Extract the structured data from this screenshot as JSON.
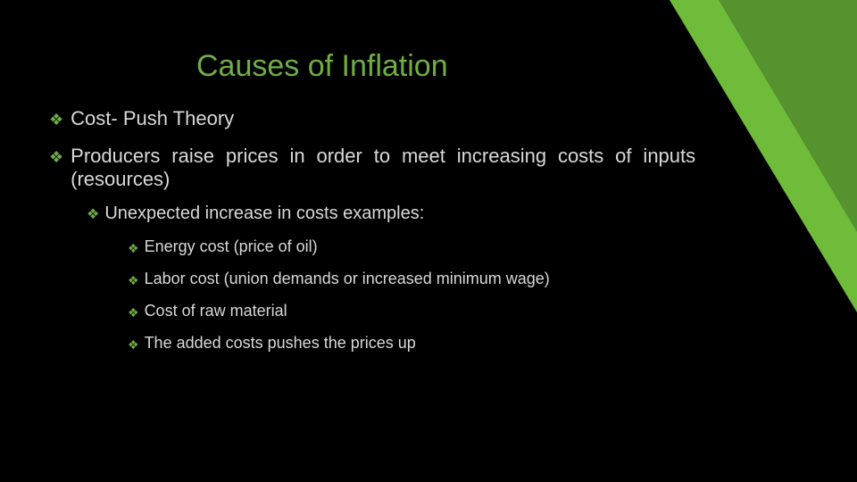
{
  "colors": {
    "background": "#000000",
    "accent": "#70ad47",
    "corner": "#6fbb3a",
    "text": "#d9d9d9"
  },
  "typography": {
    "title_fontsize": 34,
    "lvl1_fontsize": 22,
    "lvl2_fontsize": 20,
    "lvl3_fontsize": 18,
    "font_family": "Verdana"
  },
  "title": "Causes of Inflation",
  "bullets": {
    "b1": "Cost- Push Theory",
    "b2": "Producers raise prices in order to meet increasing costs of inputs (resources)",
    "b2a": "Unexpected increase in costs examples:",
    "b2a1": "Energy cost (price of oil)",
    "b2a2": "Labor cost (union demands or increased minimum wage)",
    "b2a3": "Cost of raw material",
    "b2a4": "The added costs pushes the prices up"
  }
}
